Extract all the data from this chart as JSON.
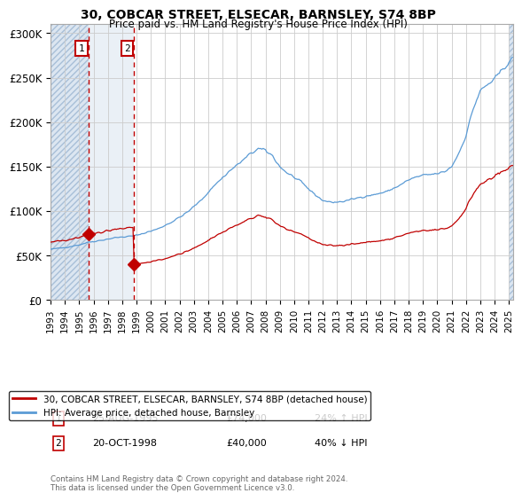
{
  "title": "30, COBCAR STREET, ELSECAR, BARNSLEY, S74 8BP",
  "subtitle": "Price paid vs. HM Land Registry's House Price Index (HPI)",
  "legend_line1": "30, COBCAR STREET, ELSECAR, BARNSLEY, S74 8BP (detached house)",
  "legend_line2": "HPI: Average price, detached house, Barnsley",
  "footer": "Contains HM Land Registry data © Crown copyright and database right 2024.\nThis data is licensed under the Open Government Licence v3.0.",
  "t1_year": 1995.65,
  "t1_price": 74000,
  "t2_year": 1998.83,
  "t2_price": 40000,
  "ylim": [
    0,
    310000
  ],
  "yticks": [
    0,
    50000,
    100000,
    150000,
    200000,
    250000,
    300000
  ],
  "ytick_labels": [
    "£0",
    "£50K",
    "£100K",
    "£150K",
    "£200K",
    "£250K",
    "£300K"
  ],
  "xlim_start": 1993.0,
  "xlim_end": 2025.3,
  "hpi_color": "#5b9bd5",
  "price_color": "#c00000",
  "vline_color": "#c00000",
  "marker_color": "#c00000",
  "hatch_color": "#c5d5e8",
  "shade_color": "#dce6f1"
}
